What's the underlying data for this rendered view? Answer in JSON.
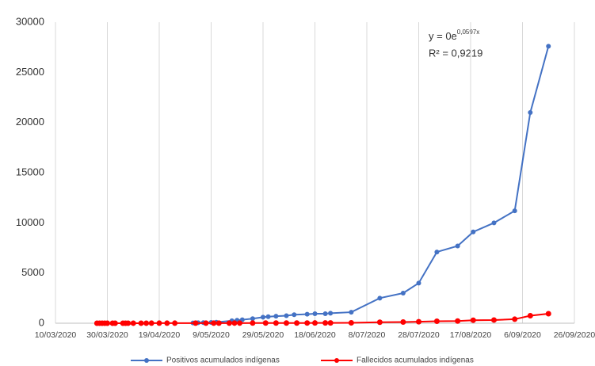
{
  "chart_data": {
    "type": "line",
    "annotation": {
      "equation": "y = 0e",
      "exponent": "0,0597x",
      "r2": "R² = 0,9219"
    },
    "xlim": [
      "2020-03-10",
      "2020-09-26"
    ],
    "xticks": [
      {
        "value": "2020-03-10",
        "label": "10/03/2020"
      },
      {
        "value": "2020-03-30",
        "label": "30/03/2020"
      },
      {
        "value": "2020-04-19",
        "label": "19/04/2020"
      },
      {
        "value": "2020-05-09",
        "label": "9/05/2020"
      },
      {
        "value": "2020-05-29",
        "label": "29/05/2020"
      },
      {
        "value": "2020-06-18",
        "label": "18/06/2020"
      },
      {
        "value": "2020-07-08",
        "label": "8/07/2020"
      },
      {
        "value": "2020-07-28",
        "label": "28/07/2020"
      },
      {
        "value": "2020-08-17",
        "label": "17/08/2020"
      },
      {
        "value": "2020-09-06",
        "label": "6/09/2020"
      },
      {
        "value": "2020-09-26",
        "label": "26/09/2020"
      }
    ],
    "ylim": [
      0,
      30000
    ],
    "yticks": [
      0,
      5000,
      10000,
      15000,
      20000,
      25000,
      30000
    ],
    "grid": "x",
    "series": [
      {
        "name": "Positivos acumulados indígenas",
        "color": "#4472c4",
        "x": [
          "2020-05-02",
          "2020-05-04",
          "2020-05-06",
          "2020-05-09",
          "2020-05-11",
          "2020-05-17",
          "2020-05-19",
          "2020-05-21",
          "2020-05-25",
          "2020-05-29",
          "2020-05-31",
          "2020-06-03",
          "2020-06-07",
          "2020-06-10",
          "2020-06-15",
          "2020-06-18",
          "2020-06-22",
          "2020-06-24",
          "2020-07-02",
          "2020-07-13",
          "2020-07-22",
          "2020-07-28",
          "2020-08-04",
          "2020-08-12",
          "2020-08-18",
          "2020-08-26",
          "2020-09-03",
          "2020-09-09",
          "2020-09-16"
        ],
        "values": [
          30,
          50,
          60,
          80,
          100,
          250,
          300,
          350,
          450,
          600,
          650,
          700,
          750,
          850,
          900,
          950,
          950,
          1000,
          1100,
          2500,
          3000,
          4000,
          7100,
          7700,
          9100,
          10000,
          11200,
          21000,
          27600
        ]
      },
      {
        "name": "Fallecidos acumulados indígenas",
        "color": "#ff0000",
        "x": [
          "2020-03-26",
          "2020-03-27",
          "2020-03-28",
          "2020-03-29",
          "2020-03-30",
          "2020-04-01",
          "2020-04-02",
          "2020-04-05",
          "2020-04-06",
          "2020-04-07",
          "2020-04-09",
          "2020-04-12",
          "2020-04-14",
          "2020-04-16",
          "2020-04-19",
          "2020-04-22",
          "2020-04-25",
          "2020-05-03",
          "2020-05-07",
          "2020-05-10",
          "2020-05-12",
          "2020-05-16",
          "2020-05-18",
          "2020-05-20",
          "2020-05-25",
          "2020-05-30",
          "2020-06-03",
          "2020-06-07",
          "2020-06-11",
          "2020-06-15",
          "2020-06-18",
          "2020-06-22",
          "2020-06-24",
          "2020-07-02",
          "2020-07-13",
          "2020-07-22",
          "2020-07-28",
          "2020-08-04",
          "2020-08-12",
          "2020-08-18",
          "2020-08-26",
          "2020-09-03",
          "2020-09-09",
          "2020-09-16"
        ],
        "values": [
          0,
          0,
          1,
          1,
          1,
          1,
          2,
          2,
          2,
          3,
          3,
          4,
          4,
          5,
          5,
          6,
          6,
          8,
          9,
          10,
          10,
          12,
          13,
          14,
          15,
          17,
          18,
          20,
          22,
          24,
          26,
          28,
          30,
          40,
          100,
          120,
          150,
          200,
          220,
          300,
          320,
          400,
          750,
          950
        ]
      }
    ]
  }
}
